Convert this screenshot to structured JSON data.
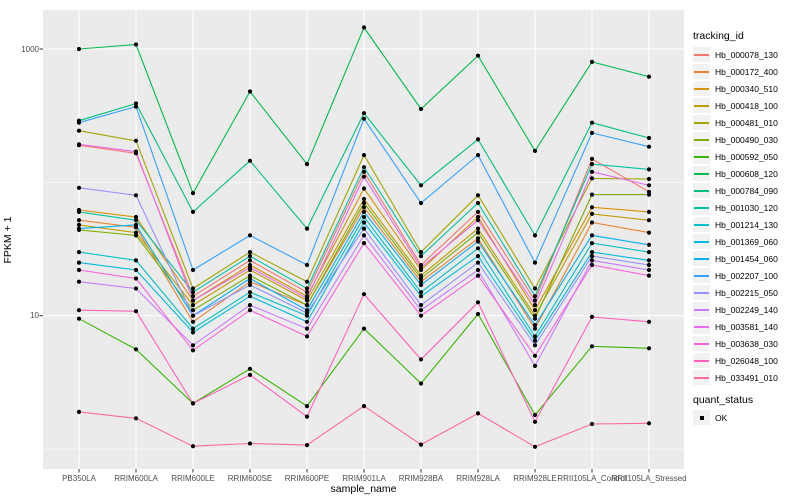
{
  "figure": {
    "background": "#FFFFFF",
    "panel_background": "#EBEBEB",
    "grid_color": "#FFFFFF",
    "tick_color": "#333333",
    "tick_label_color": "#4D4D4D",
    "point_color": "#000000"
  },
  "chart_data": {
    "type": "line",
    "title": "",
    "xlabel": "sample_name",
    "ylabel": "FPKM + 1",
    "x_categories": [
      "PB350LA",
      "RRIM600LA",
      "RRIM600LE",
      "RRIM600SE",
      "RRIM600PE",
      "RRIM901LA",
      "RRIM928BA",
      "RRIM928LA",
      "RRIM928LE",
      "RRII105LA_Control",
      "RRII105LA_Stressed"
    ],
    "y_scale": "log10",
    "ylim_approx": [
      0.72,
      1950
    ],
    "y_ticks": [
      {
        "label": "10",
        "value": 10
      },
      {
        "label": "1000",
        "value": 1000
      }
    ],
    "major_gridlines_y": [
      10,
      1000
    ],
    "minor_gridlines_y": [
      1,
      100
    ],
    "grid": "major-and-minor-white-on-grey",
    "legend_title": "tracking_id",
    "legend_position": "right",
    "marker": "small-black-point",
    "series": [
      {
        "name": "Hb_000078_130",
        "color": "#F8766D",
        "values": [
          190,
          165,
          14,
          26,
          15,
          120,
          24,
          60,
          13,
          150,
          85
        ]
      },
      {
        "name": "Hb_000172_400",
        "color": "#EA8331",
        "values": [
          52,
          46,
          9,
          18,
          12,
          65,
          18,
          38,
          8,
          50,
          42
        ]
      },
      {
        "name": "Hb_000340_510",
        "color": "#D89000",
        "values": [
          62,
          55,
          13,
          24,
          14,
          90,
          22,
          55,
          11,
          65,
          60
        ]
      },
      {
        "name": "Hb_000418_100",
        "color": "#C09B00",
        "values": [
          48,
          42,
          12,
          22,
          13,
          75,
          20,
          45,
          10,
          58,
          52
        ]
      },
      {
        "name": "Hb_000481_010",
        "color": "#A3A500",
        "values": [
          244,
          205,
          16,
          30,
          18,
          160,
          30,
          80,
          16,
          107,
          106
        ]
      },
      {
        "name": "Hb_000490_030",
        "color": "#7CAE00",
        "values": [
          44,
          40,
          11,
          20,
          12,
          70,
          19,
          42,
          9.5,
          81,
          81
        ]
      },
      {
        "name": "Hb_000592_050",
        "color": "#39B600",
        "values": [
          9.5,
          5.6,
          2.2,
          4.0,
          2.1,
          8.0,
          3.1,
          10.3,
          1.8,
          5.9,
          5.7
        ]
      },
      {
        "name": "Hb_000608_120",
        "color": "#00BB4E",
        "values": [
          1000,
          1080,
          83,
          480,
          137,
          1450,
          355,
          890,
          172,
          800,
          620
        ]
      },
      {
        "name": "Hb_000784_090",
        "color": "#00BF7D",
        "values": [
          290,
          390,
          60,
          145,
          45,
          330,
          95,
          210,
          40,
          280,
          215
        ]
      },
      {
        "name": "Hb_001030_120",
        "color": "#00C1A3",
        "values": [
          60,
          52,
          15,
          28,
          16,
          130,
          28,
          70,
          14,
          137,
          125
        ]
      },
      {
        "name": "Hb_001214_130",
        "color": "#00BFC4",
        "values": [
          30,
          26,
          8,
          15,
          10,
          55,
          15,
          32,
          7,
          35,
          30
        ]
      },
      {
        "name": "Hb_001369_060",
        "color": "#00BAE0",
        "values": [
          25,
          22,
          7.5,
          14,
          9,
          50,
          14,
          28,
          6.5,
          30,
          26
        ]
      },
      {
        "name": "Hb_001454_060",
        "color": "#00B0F6",
        "values": [
          45,
          48,
          10,
          19,
          11,
          60,
          17,
          36,
          8.5,
          40,
          34
        ]
      },
      {
        "name": "Hb_002207_100",
        "color": "#35A2FF",
        "values": [
          280,
          370,
          22,
          40,
          24,
          300,
          70,
          160,
          25,
          235,
          185
        ]
      },
      {
        "name": "Hb_002215_050",
        "color": "#9590FF",
        "values": [
          91,
          80,
          10,
          17,
          10.5,
          45,
          12,
          25,
          6,
          28,
          24
        ]
      },
      {
        "name": "Hb_002249_140",
        "color": "#C77CFF",
        "values": [
          18,
          16,
          6,
          12,
          8,
          40,
          11,
          22,
          4.2,
          26,
          22
        ]
      },
      {
        "name": "Hb_003581_140",
        "color": "#E76BF3",
        "values": [
          193,
          170,
          13,
          23,
          13.5,
          110,
          23,
          52,
          12,
          120,
          95
        ]
      },
      {
        "name": "Hb_003638_030",
        "color": "#FA62DB",
        "values": [
          22,
          19,
          5.5,
          11,
          7,
          35,
          10,
          20,
          5,
          24,
          20
        ]
      },
      {
        "name": "Hb_026048_100",
        "color": "#FF62BC",
        "values": [
          11,
          10.8,
          2.2,
          3.6,
          1.75,
          14.5,
          4.7,
          12.6,
          1.6,
          9.8,
          9.0
        ]
      },
      {
        "name": "Hb_033491_010",
        "color": "#FF6A98",
        "values": [
          1.9,
          1.7,
          1.05,
          1.1,
          1.07,
          2.1,
          1.08,
          1.85,
          1.04,
          1.54,
          1.56
        ]
      }
    ],
    "quant_status": {
      "title": "quant_status",
      "items": [
        {
          "label": "OK",
          "marker": "filled-square",
          "color": "#000000"
        }
      ]
    }
  }
}
